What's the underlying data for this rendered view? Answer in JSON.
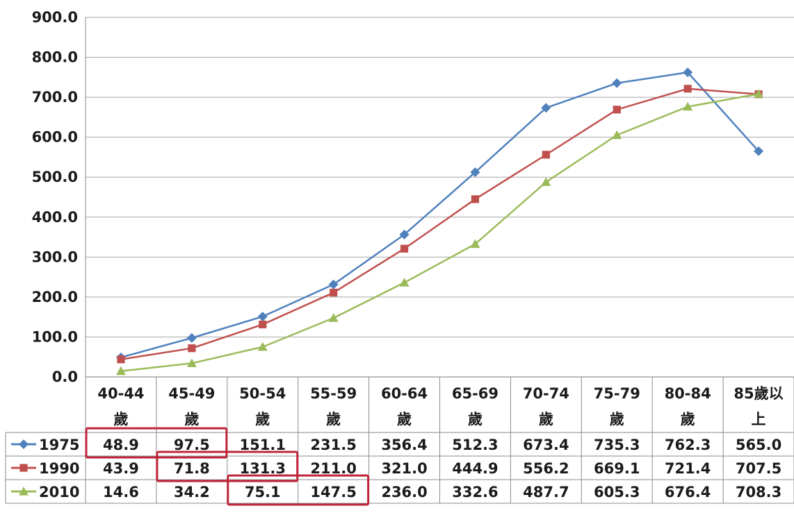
{
  "chart_data": {
    "type": "line",
    "categories": [
      [
        "40-44",
        "歲"
      ],
      [
        "45-49",
        "歲"
      ],
      [
        "50-54",
        "歲"
      ],
      [
        "55-59",
        "歲"
      ],
      [
        "60-64",
        "歲"
      ],
      [
        "65-69",
        "歲"
      ],
      [
        "70-74",
        "歲"
      ],
      [
        "75-79",
        "歲"
      ],
      [
        "80-84",
        "歲"
      ],
      [
        "85歲以",
        "上"
      ]
    ],
    "series": [
      {
        "name": "1975",
        "color": "#4f81bd",
        "marker": "diamond",
        "values": [
          48.9,
          97.5,
          151.1,
          231.5,
          356.4,
          512.3,
          673.4,
          735.3,
          762.3,
          565.0
        ],
        "labels": [
          "48.9",
          "97.5",
          "151.1",
          "231.5",
          "356.4",
          "512.3",
          "673.4",
          "735.3",
          "762.3",
          "565.0"
        ]
      },
      {
        "name": "1990",
        "color": "#c0504d",
        "marker": "square",
        "values": [
          43.9,
          71.8,
          131.3,
          211.0,
          321.0,
          444.9,
          556.2,
          669.1,
          721.4,
          707.5
        ],
        "labels": [
          "43.9",
          "71.8",
          "131.3",
          "211.0",
          "321.0",
          "444.9",
          "556.2",
          "669.1",
          "721.4",
          "707.5"
        ]
      },
      {
        "name": "2010",
        "color": "#9bbb59",
        "marker": "triangle",
        "values": [
          14.6,
          34.2,
          75.1,
          147.5,
          236.0,
          332.6,
          487.7,
          605.3,
          676.4,
          708.3
        ],
        "labels": [
          "14.6",
          "34.2",
          "75.1",
          "147.5",
          "236.0",
          "332.6",
          "487.7",
          "605.3",
          "676.4",
          "708.3"
        ]
      }
    ],
    "ylim": [
      0,
      900
    ],
    "yticks": [
      "0.0",
      "100.0",
      "200.0",
      "300.0",
      "400.0",
      "500.0",
      "600.0",
      "700.0",
      "800.0",
      "900.0"
    ],
    "grid": true,
    "data_table": true,
    "highlight_color": "#c0243a",
    "highlights": [
      {
        "series": 0,
        "from": 0,
        "to": 1
      },
      {
        "series": 1,
        "from": 1,
        "to": 2
      },
      {
        "series": 2,
        "from": 2,
        "to": 3
      }
    ]
  }
}
